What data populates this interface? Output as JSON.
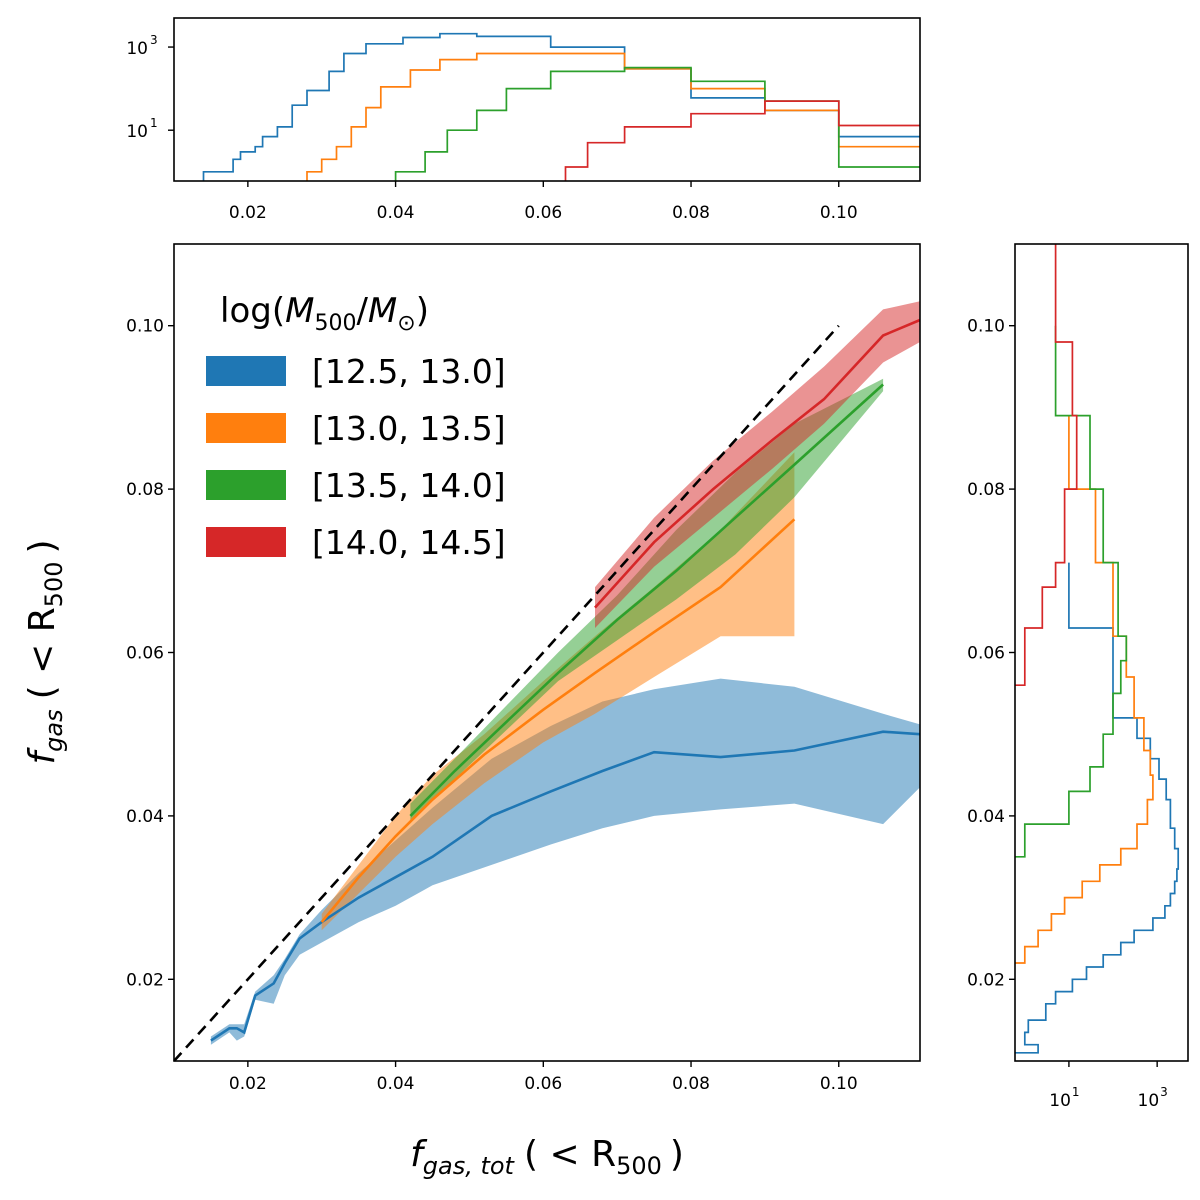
{
  "chart_data": [
    {
      "id": "main",
      "type": "line",
      "xlabel": {
        "f": "f",
        "sub": "gas, tot",
        "rest": "( < R",
        "rsub": "500",
        "close": ")"
      },
      "ylabel": {
        "f": "f",
        "sub": "gas",
        "rest": "( < R",
        "rsub": "500",
        "close": ")"
      },
      "xlim": [
        0.01,
        0.111
      ],
      "ylim": [
        0.01,
        0.11
      ],
      "xticks": [
        0.02,
        0.04,
        0.06,
        0.08,
        0.1
      ],
      "xtick_labels": [
        "0.02",
        "0.04",
        "0.06",
        "0.08",
        "0.10"
      ],
      "yticks": [
        0.02,
        0.04,
        0.06,
        0.08,
        0.1
      ],
      "ytick_labels": [
        "0.02",
        "0.04",
        "0.06",
        "0.08",
        "0.10"
      ],
      "grid": false,
      "legend": {
        "placement": "upper-left",
        "title": {
          "pre": "log(",
          "m1": "M",
          "s1": "500",
          "slash": "/",
          "m2": "M",
          "s2": "⊙",
          "post": ")"
        }
      },
      "reference_line": {
        "x": [
          0.01,
          0.1
        ],
        "y": [
          0.01,
          0.1
        ],
        "style": "dashed",
        "color": "#000000"
      },
      "series": [
        {
          "name": "[12.5, 13.0]",
          "color": "#1f77b4",
          "x": [
            0.015,
            0.0175,
            0.0185,
            0.0195,
            0.021,
            0.0235,
            0.025,
            0.027,
            0.03,
            0.035,
            0.04,
            0.045,
            0.053,
            0.061,
            0.068,
            0.075,
            0.084,
            0.094,
            0.106,
            0.111
          ],
          "y": [
            0.0125,
            0.014,
            0.014,
            0.0135,
            0.018,
            0.0195,
            0.022,
            0.025,
            0.027,
            0.03,
            0.0325,
            0.035,
            0.04,
            0.043,
            0.0455,
            0.0478,
            0.0472,
            0.048,
            0.0503,
            0.05
          ],
          "lower": [
            0.012,
            0.0135,
            0.0125,
            0.013,
            0.0175,
            0.017,
            0.0205,
            0.023,
            0.0245,
            0.027,
            0.029,
            0.0315,
            0.034,
            0.0365,
            0.0385,
            0.04,
            0.0408,
            0.0415,
            0.039,
            0.0435
          ],
          "upper": [
            0.013,
            0.0145,
            0.0145,
            0.0145,
            0.0185,
            0.0205,
            0.0225,
            0.0255,
            0.0285,
            0.033,
            0.037,
            0.041,
            0.047,
            0.051,
            0.054,
            0.0555,
            0.0568,
            0.0558,
            0.0525,
            0.0512
          ]
        },
        {
          "name": "[13.0, 13.5]",
          "color": "#ff7f0e",
          "x": [
            0.03,
            0.035,
            0.04,
            0.045,
            0.052,
            0.06,
            0.067,
            0.075,
            0.084,
            0.094
          ],
          "y": [
            0.027,
            0.0325,
            0.0375,
            0.042,
            0.0475,
            0.053,
            0.0575,
            0.0625,
            0.068,
            0.0763
          ],
          "lower": [
            0.026,
            0.0305,
            0.035,
            0.039,
            0.044,
            0.049,
            0.0525,
            0.057,
            0.062,
            0.062
          ],
          "upper": [
            0.028,
            0.034,
            0.04,
            0.045,
            0.05,
            0.0565,
            0.062,
            0.068,
            0.075,
            0.0845
          ]
        },
        {
          "name": "[13.5, 14.0]",
          "color": "#2ca02c",
          "x": [
            0.042,
            0.048,
            0.055,
            0.062,
            0.07,
            0.078,
            0.086,
            0.094,
            0.106
          ],
          "y": [
            0.04,
            0.0455,
            0.0515,
            0.0575,
            0.064,
            0.07,
            0.0765,
            0.083,
            0.0928
          ],
          "lower": [
            0.0395,
            0.0445,
            0.0505,
            0.0565,
            0.0615,
            0.0665,
            0.072,
            0.079,
            0.092
          ],
          "upper": [
            0.0415,
            0.047,
            0.0535,
            0.06,
            0.067,
            0.075,
            0.082,
            0.088,
            0.0935
          ]
        },
        {
          "name": "[14.0, 14.5]",
          "color": "#d62728",
          "x": [
            0.067,
            0.075,
            0.083,
            0.091,
            0.098,
            0.106,
            0.111
          ],
          "y": [
            0.0655,
            0.0735,
            0.08,
            0.086,
            0.091,
            0.0988,
            0.1007
          ],
          "lower": [
            0.063,
            0.0705,
            0.0765,
            0.0825,
            0.088,
            0.0955,
            0.098
          ],
          "upper": [
            0.068,
            0.0765,
            0.0835,
            0.0895,
            0.095,
            0.102,
            0.103
          ]
        }
      ]
    },
    {
      "id": "top-histogram",
      "type": "histogram",
      "orientation": "vertical",
      "xlim": [
        0.01,
        0.111
      ],
      "ylim": [
        0.6,
        5000
      ],
      "yscale": "log",
      "xticks": [
        0.02,
        0.04,
        0.06,
        0.08,
        0.1
      ],
      "xtick_labels": [
        "0.02",
        "0.04",
        "0.06",
        "0.08",
        "0.10"
      ],
      "yticks": [
        1000,
        10
      ],
      "ytick_labels": [
        {
          "base": "10",
          "exp": "3"
        },
        {
          "base": "10",
          "exp": "1"
        }
      ],
      "series": [
        {
          "name": "[12.5, 13.0]",
          "color": "#1f77b4",
          "edges": [
            0.014,
            0.016,
            0.018,
            0.019,
            0.021,
            0.022,
            0.024,
            0.026,
            0.028,
            0.031,
            0.033,
            0.036,
            0.041,
            0.046,
            0.051,
            0.061,
            0.071,
            0.08,
            0.09,
            0.1,
            0.111
          ],
          "counts": [
            1,
            1,
            2,
            3,
            4,
            7,
            12,
            40,
            90,
            260,
            700,
            1200,
            1700,
            2100,
            1800,
            1000,
            300,
            60,
            30,
            7
          ]
        },
        {
          "name": "[13.0, 13.5]",
          "color": "#ff7f0e",
          "edges": [
            0.028,
            0.03,
            0.032,
            0.034,
            0.036,
            0.038,
            0.042,
            0.046,
            0.051,
            0.061,
            0.071,
            0.08,
            0.09,
            0.1,
            0.111
          ],
          "counts": [
            1,
            2,
            4,
            12,
            35,
            110,
            280,
            500,
            700,
            700,
            300,
            100,
            30,
            4
          ],
          "note": "counts rise from 1 to ~700"
        },
        {
          "name": "[13.5, 14.0]",
          "color": "#2ca02c",
          "edges": [
            0.04,
            0.044,
            0.047,
            0.051,
            0.055,
            0.061,
            0.071,
            0.08,
            0.09,
            0.1,
            0.111
          ],
          "counts": [
            1,
            3,
            10,
            30,
            100,
            260,
            320,
            150,
            50,
            1.3
          ]
        },
        {
          "name": "[14.0, 14.5]",
          "color": "#d62728",
          "edges": [
            0.063,
            0.066,
            0.071,
            0.08,
            0.09,
            0.1,
            0.111
          ],
          "counts": [
            1.3,
            5,
            12,
            25,
            50,
            13
          ]
        }
      ]
    },
    {
      "id": "right-histogram",
      "type": "histogram",
      "orientation": "horizontal",
      "ylim": [
        0.01,
        0.11
      ],
      "xlim": [
        0.6,
        5000
      ],
      "xscale": "log",
      "yticks": [
        0.02,
        0.04,
        0.06,
        0.08,
        0.1
      ],
      "ytick_labels": [
        "0.02",
        "0.04",
        "0.06",
        "0.08",
        "0.10"
      ],
      "xticks": [
        10,
        1000
      ],
      "xtick_labels": [
        {
          "base": "10",
          "exp": "1"
        },
        {
          "base": "10",
          "exp": "3"
        }
      ],
      "series": [
        {
          "name": "[12.5, 13.0]",
          "color": "#1f77b4",
          "edges": [
            0.011,
            0.012,
            0.0135,
            0.015,
            0.017,
            0.0185,
            0.02,
            0.0215,
            0.023,
            0.0245,
            0.026,
            0.0275,
            0.029,
            0.0305,
            0.032,
            0.0335,
            0.036,
            0.0385,
            0.042,
            0.0445,
            0.047,
            0.0495,
            0.052,
            0.063,
            0.071
          ],
          "counts": [
            2,
            1,
            1.2,
            3,
            5,
            12,
            25,
            60,
            150,
            300,
            800,
            1500,
            2000,
            2500,
            2800,
            3000,
            2500,
            2000,
            1600,
            1100,
            700,
            350,
            100,
            10
          ]
        },
        {
          "name": "[13.0, 13.5]",
          "color": "#ff7f0e",
          "edges": [
            0.022,
            0.024,
            0.026,
            0.028,
            0.03,
            0.032,
            0.034,
            0.036,
            0.039,
            0.042,
            0.045,
            0.048,
            0.052,
            0.057,
            0.062,
            0.071,
            0.08,
            0.089
          ],
          "counts": [
            1,
            2,
            4,
            8,
            20,
            50,
            150,
            350,
            600,
            800,
            700,
            500,
            300,
            200,
            100,
            40,
            10
          ]
        },
        {
          "name": "[13.5, 14.0]",
          "color": "#2ca02c",
          "edges": [
            0.035,
            0.039,
            0.043,
            0.046,
            0.05,
            0.055,
            0.059,
            0.062,
            0.071,
            0.08,
            0.089,
            0.1
          ],
          "counts": [
            1,
            10,
            30,
            60,
            100,
            150,
            200,
            130,
            60,
            30,
            5
          ]
        },
        {
          "name": "[14.0, 14.5]",
          "color": "#d62728",
          "edges": [
            0.056,
            0.063,
            0.068,
            0.071,
            0.08,
            0.089,
            0.098,
            0.11
          ],
          "counts": [
            1,
            2.5,
            5,
            8,
            15,
            12,
            5
          ]
        }
      ]
    }
  ]
}
